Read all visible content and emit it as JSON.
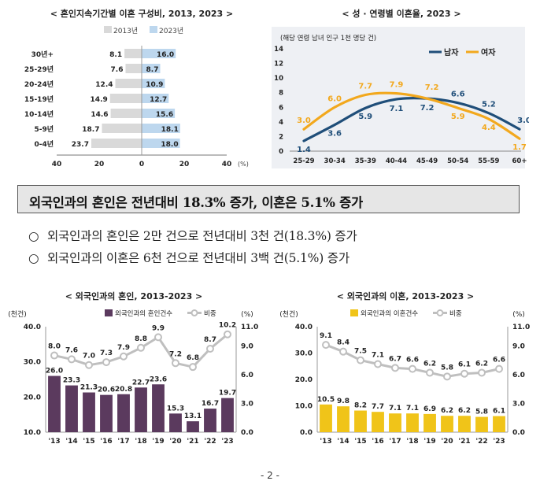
{
  "headline": "외국인과의 혼인은 전년대비 18.3% 증가, 이혼은 5.1% 증가",
  "bullets": [
    {
      "mark": "○",
      "text": "외국인과의 혼인은 2만 건으로 전년대비 3천 건(18.3%) 증가"
    },
    {
      "mark": "○",
      "text": "외국인과의 이혼은 6천 건으로 전년대비 3백 건(5.1%) 증가"
    }
  ],
  "page_number": "- 2 -",
  "colors": {
    "gray_bar": "#d9d9d9",
    "blue_bar": "#bdd7ee",
    "male": "#1f4e79",
    "female": "#f2a81d",
    "purple": "#5b3a5e",
    "yellow": "#f0c419",
    "ratio_line": "#bfbfbf"
  },
  "chart_data": [
    {
      "type": "bar",
      "id": "duration",
      "title": "< 혼인지속기간별 이혼 구성비, 2013, 2023 >",
      "orientation": "horizontal",
      "categories": [
        "30년+",
        "25-29년",
        "20-24년",
        "15-19년",
        "10-14년",
        "5-9년",
        "0-4년"
      ],
      "series": [
        {
          "name": "2013년",
          "values": [
            8.1,
            7.6,
            12.4,
            14.9,
            14.6,
            18.7,
            23.7
          ]
        },
        {
          "name": "2023년",
          "values": [
            16.0,
            8.7,
            10.9,
            12.7,
            15.6,
            18.1,
            18.0
          ]
        }
      ],
      "value_labels_2013": [
        "8.1",
        "7.6",
        "12.4",
        "14.9",
        "14.6",
        "18.7",
        "23.7"
      ],
      "value_labels_2023": [
        "16.0",
        "8.7",
        "10.9",
        "12.7",
        "15.6",
        "18.1",
        "18.0"
      ],
      "xticks": [
        "40",
        "20",
        "0",
        "20",
        "40"
      ],
      "xunit": "(%)",
      "xlim": [
        -40,
        40
      ]
    },
    {
      "type": "line",
      "id": "agesex",
      "title": "< 성 · 연령별 이혼율, 2023 >",
      "ylabel": "(해당 연령 남녀 인구 1천 명당 건)",
      "categories": [
        "25-29",
        "30-34",
        "35-39",
        "40-44",
        "45-49",
        "50-54",
        "55-59",
        "60+"
      ],
      "series": [
        {
          "name": "남자",
          "values": [
            1.4,
            3.6,
            5.9,
            7.1,
            7.2,
            6.6,
            5.2,
            3.0
          ]
        },
        {
          "name": "여자",
          "values": [
            3.0,
            6.0,
            7.7,
            7.9,
            7.2,
            5.9,
            4.4,
            1.7
          ]
        }
      ],
      "male_labels": [
        "1.4",
        "3.6",
        "5.9",
        "7.1",
        "7.2",
        "6.6",
        "5.2",
        "3.0"
      ],
      "female_labels": [
        "3.0",
        "6.0",
        "7.7",
        "7.9",
        "7.2",
        "5.9",
        "4.4",
        "1.7"
      ],
      "yticks": [
        "0",
        "2",
        "4",
        "6",
        "8",
        "10",
        "12",
        "14"
      ],
      "ylim": [
        0,
        14
      ],
      "legend_position": "top-right"
    },
    {
      "type": "bar",
      "id": "marriage",
      "title": "< 외국인과의 혼인, 2013-2023 >",
      "categories": [
        "'13",
        "'14",
        "'15",
        "'16",
        "'17",
        "'18",
        "'19",
        "'20",
        "'21",
        "'22",
        "'23"
      ],
      "series": [
        {
          "name": "외국인과의 혼인건수",
          "values": [
            26.0,
            23.3,
            21.3,
            20.6,
            20.8,
            22.7,
            23.6,
            15.3,
            13.1,
            16.7,
            19.7
          ]
        },
        {
          "name": "비중",
          "values": [
            8.0,
            7.6,
            7.0,
            7.3,
            7.9,
            8.8,
            9.9,
            7.2,
            6.8,
            8.7,
            10.2
          ]
        }
      ],
      "bar_labels": [
        "26.0",
        "23.3",
        "21.3",
        "20.6",
        "20.8",
        "22.7",
        "23.6",
        "15.3",
        "13.1",
        "16.7",
        "19.7"
      ],
      "ratio_labels": [
        "8.0",
        "7.6",
        "7.0",
        "7.3",
        "7.9",
        "8.8",
        "9.9",
        "7.2",
        "6.8",
        "8.7",
        "10.2"
      ],
      "left_unit": "(천건)",
      "right_unit": "(%)",
      "left_ticks": [
        "10.0",
        "20.0",
        "30.0",
        "40.0"
      ],
      "right_ticks": [
        "0.0",
        "3.0",
        "6.0",
        "9.0",
        "11.0"
      ],
      "ylim_left": [
        10,
        40
      ],
      "ylim_right": [
        0,
        11
      ]
    },
    {
      "type": "bar",
      "id": "divorce",
      "title": "< 외국인과의 이혼, 2013-2023 >",
      "categories": [
        "'13",
        "'14",
        "'15",
        "'16",
        "'17",
        "'18",
        "'19",
        "'20",
        "'21",
        "'22",
        "'23"
      ],
      "series": [
        {
          "name": "외국인과의 이혼건수",
          "values": [
            10.5,
            9.8,
            8.2,
            7.7,
            7.1,
            7.1,
            6.9,
            6.2,
            6.2,
            5.8,
            6.1
          ]
        },
        {
          "name": "비중",
          "values": [
            9.1,
            8.4,
            7.5,
            7.1,
            6.7,
            6.6,
            6.2,
            5.8,
            6.1,
            6.2,
            6.6
          ]
        }
      ],
      "bar_labels": [
        "10.5",
        "9.8",
        "8.2",
        "7.7",
        "7.1",
        "7.1",
        "6.9",
        "6.2",
        "6.2",
        "5.8",
        "6.1"
      ],
      "ratio_labels": [
        "9.1",
        "8.4",
        "7.5",
        "7.1",
        "6.7",
        "6.6",
        "6.2",
        "5.8",
        "6.1",
        "6.2",
        "6.6"
      ],
      "left_unit": "(천건)",
      "right_unit": "(%)",
      "left_ticks": [
        "0.0",
        "10.0",
        "20.0",
        "30.0",
        "40.0"
      ],
      "right_ticks": [
        "0.0",
        "3.0",
        "6.0",
        "9.0",
        "11.0"
      ],
      "ylim_left": [
        0,
        40
      ],
      "ylim_right": [
        0,
        11
      ]
    }
  ]
}
